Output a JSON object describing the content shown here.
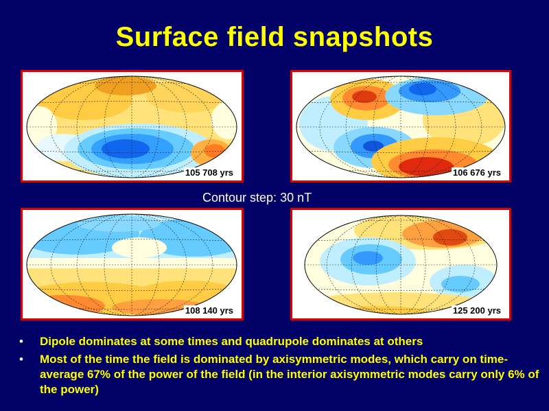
{
  "slide": {
    "title": "Surface field snapshots",
    "contour_label": "Contour step: 30 nT"
  },
  "maps": [
    {
      "label": "105 708 yrs"
    },
    {
      "label": "106 676 yrs"
    },
    {
      "label": "108 140 yrs"
    },
    {
      "label": "125 200 yrs"
    }
  ],
  "bullets": [
    {
      "text": "Dipole dominates at some times and quadrupole dominates at others"
    },
    {
      "text": "Most of the time the field is dominated by axisymmetric modes, which carry on time-average 67% of the power of the field   (in the interior axisymmetric modes carry only 6% of the power)"
    }
  ],
  "colors": {
    "background": "#000066",
    "title": "#ffff00",
    "frame": "#e00000",
    "positive": "#ff2a00",
    "negative": "#0033ff"
  }
}
